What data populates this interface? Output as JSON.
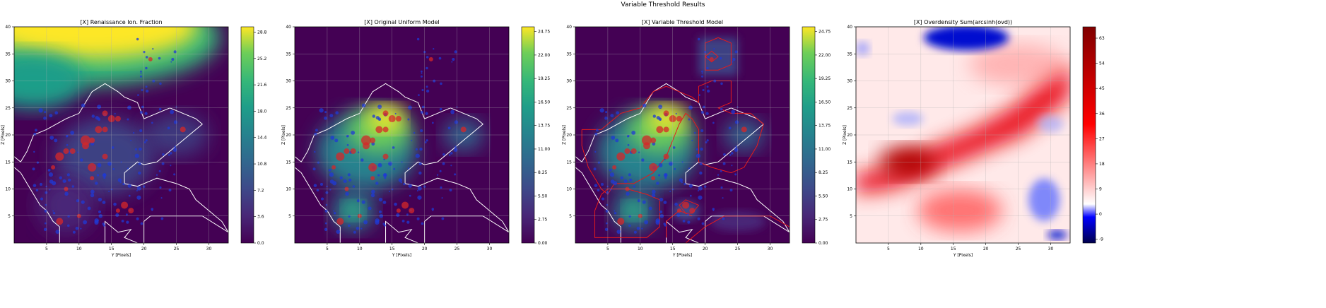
{
  "figure": {
    "suptitle": "Variable Threshold Results"
  },
  "colors": {
    "background": "#ffffff",
    "viridis_low": "#440154",
    "viridis_mid": "#21918c",
    "viridis_high": "#fde725",
    "contour_white": "#ffffff",
    "contour_red": "#e41a1c",
    "marker_red": "#d62728",
    "marker_blue": "#1f3ad6"
  },
  "chart_data": [
    {
      "type": "heatmap",
      "title": "[X] Renaissance Ion. Fraction",
      "xlabel": "Y [Pixels]",
      "ylabel": "Z [Pixels]",
      "xlim": [
        0,
        33
      ],
      "ylim": [
        0,
        40
      ],
      "xticks": [
        "5",
        "10",
        "15",
        "20",
        "25",
        "30"
      ],
      "yticks": [
        "5",
        "10",
        "15",
        "20",
        "25",
        "30",
        "35",
        "40"
      ],
      "colorbar": {
        "colormap": "viridis",
        "ticks": [
          "0.0",
          "3.6",
          "7.2",
          "10.8",
          "14.4",
          "18.0",
          "21.6",
          "25.2",
          "28.8"
        ]
      },
      "grid": true,
      "overlays": [
        "white threshold contour",
        "red markers",
        "blue markers"
      ]
    },
    {
      "type": "heatmap",
      "title": "[X] Original Uniform Model",
      "xlabel": "Y [Pixels]",
      "ylabel": "Z [Pixels]",
      "xlim": [
        0,
        33
      ],
      "ylim": [
        0,
        40
      ],
      "xticks": [
        "5",
        "10",
        "15",
        "20",
        "25",
        "30"
      ],
      "yticks": [
        "5",
        "10",
        "15",
        "20",
        "25",
        "30",
        "35",
        "40"
      ],
      "colorbar": {
        "colormap": "viridis",
        "ticks": [
          "0.00",
          "2.75",
          "5.50",
          "8.25",
          "11.00",
          "13.75",
          "16.50",
          "19.25",
          "22.00",
          "24.75"
        ]
      },
      "grid": true,
      "overlays": [
        "white threshold contour",
        "red markers",
        "blue markers"
      ]
    },
    {
      "type": "heatmap",
      "title": "[X] Variable Threshold Model",
      "xlabel": "Y [Pixels]",
      "ylabel": "Z [Pixels]",
      "xlim": [
        0,
        33
      ],
      "ylim": [
        0,
        40
      ],
      "xticks": [
        "5",
        "10",
        "15",
        "20",
        "25",
        "30"
      ],
      "yticks": [
        "5",
        "10",
        "15",
        "20",
        "25",
        "30",
        "35",
        "40"
      ],
      "colorbar": {
        "colormap": "viridis",
        "ticks": [
          "0.00",
          "2.75",
          "5.50",
          "8.25",
          "11.00",
          "13.75",
          "16.50",
          "19.25",
          "22.00",
          "24.75"
        ]
      },
      "grid": true,
      "overlays": [
        "white threshold contour",
        "red region contours",
        "red markers",
        "blue markers"
      ]
    },
    {
      "type": "heatmap",
      "title": "[X] Overdensity Sum(arcsinh(ovd))",
      "xlabel": "Y [Pixels]",
      "ylabel": "Z [Pixels]",
      "xlim": [
        0,
        33
      ],
      "ylim": [
        0,
        40
      ],
      "xticks": [
        "5",
        "10",
        "15",
        "20",
        "25",
        "30"
      ],
      "yticks": [
        "5",
        "10",
        "15",
        "20",
        "25",
        "30",
        "35",
        "40"
      ],
      "colorbar": {
        "colormap": "seismic",
        "ticks": [
          "-9",
          "0",
          "9",
          "18",
          "27",
          "36",
          "45",
          "54",
          "63"
        ]
      },
      "grid": true,
      "overlays": []
    }
  ]
}
